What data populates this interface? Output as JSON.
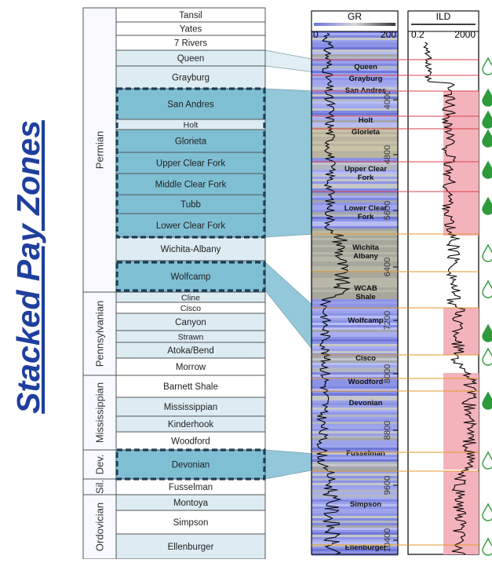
{
  "title": "Stacked Pay Zones",
  "periods": [
    "Permian",
    "Pennsylvanian",
    "Mississippian",
    "Dev.",
    "Sil.",
    "Ordovician"
  ],
  "formations": [
    "Tansil",
    "Yates",
    "7 Rivers",
    "Queen",
    "Grayburg",
    "San Andres",
    "Holt",
    "Glorieta",
    "Upper Clear Fork",
    "Middle Clear Fork",
    "Tubb",
    "Lower Clear Fork",
    "Wichita-Albany",
    "Wolfcamp",
    "Cline",
    "Cisco",
    "Canyon",
    "Strawn",
    "Atoka/Bend",
    "Morrow",
    "Barnett Shale",
    "Mississippian",
    "Kinderhook",
    "Woodford",
    "Devonian",
    "Fusselman",
    "Montoya",
    "Simpson",
    "Ellenburger"
  ],
  "logs": {
    "gr": {
      "name": "GR",
      "min": "0",
      "max": "200"
    },
    "ild": {
      "name": "ILD",
      "min": "0.2",
      "max": "2000"
    }
  },
  "depth_ticks": [
    "4000",
    "4800",
    "5600",
    "6400",
    "7200",
    "8000",
    "8800",
    "9600",
    "10400"
  ],
  "log_zones": [
    "Queen",
    "Grayburg",
    "San Andres",
    "Holt",
    "Glorieta",
    "Upper Clear Fork",
    "Lower Clear Fork",
    "Wichita Albany",
    "WCAB Shale",
    "Wolfcamp",
    "Cisco",
    "Woodford",
    "Devonian",
    "Fusselman",
    "Simpson",
    "Ellenburger"
  ],
  "colors": {
    "pay_zone": "#7fbfd4",
    "highlight": "#dcecf2",
    "title": "#1f3f9e",
    "gr_fill": "#8f95e8",
    "ild_fill": "#f4b3bb",
    "oil_marker": "#2f9a3c"
  }
}
